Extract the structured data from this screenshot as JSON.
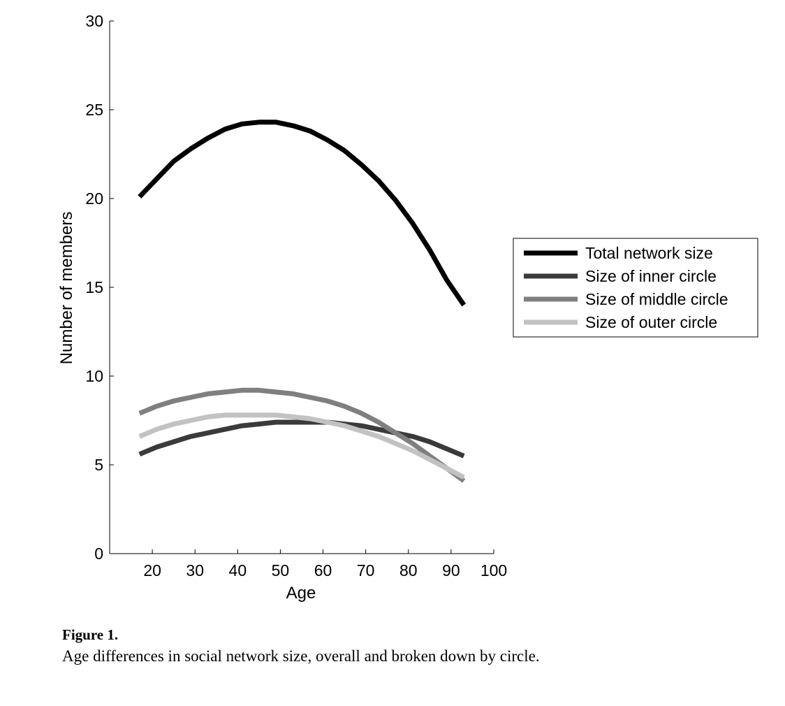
{
  "chart_data": {
    "type": "line",
    "xlabel": "Age",
    "ylabel": "Number of members",
    "xlim": [
      10,
      100
    ],
    "ylim": [
      0,
      30
    ],
    "x_ticks": [
      20,
      30,
      40,
      50,
      60,
      70,
      80,
      90,
      100
    ],
    "y_ticks": [
      0,
      5,
      10,
      15,
      20,
      25,
      30
    ],
    "grid": false,
    "legend_position": "right",
    "x": [
      17,
      21,
      25,
      29,
      33,
      37,
      41,
      45,
      49,
      53,
      57,
      61,
      65,
      69,
      73,
      77,
      81,
      85,
      89,
      93
    ],
    "series": [
      {
        "name": "Total network size",
        "color": "#000000",
        "values": [
          20.1,
          21.1,
          22.1,
          22.8,
          23.4,
          23.9,
          24.2,
          24.3,
          24.3,
          24.1,
          23.8,
          23.3,
          22.7,
          21.9,
          21.0,
          19.9,
          18.6,
          17.1,
          15.4,
          14.0
        ]
      },
      {
        "name": "Size of inner circle",
        "color": "#3a3a3a",
        "values": [
          5.6,
          6.0,
          6.3,
          6.6,
          6.8,
          7.0,
          7.2,
          7.3,
          7.4,
          7.4,
          7.4,
          7.4,
          7.3,
          7.2,
          7.0,
          6.8,
          6.6,
          6.3,
          5.9,
          5.5
        ]
      },
      {
        "name": "Size of middle circle",
        "color": "#7f7f7f",
        "values": [
          7.9,
          8.3,
          8.6,
          8.8,
          9.0,
          9.1,
          9.2,
          9.2,
          9.1,
          9.0,
          8.8,
          8.6,
          8.3,
          7.9,
          7.4,
          6.8,
          6.2,
          5.5,
          4.8,
          4.1
        ]
      },
      {
        "name": "Size of outer circle",
        "color": "#c2c2c2",
        "values": [
          6.6,
          7.0,
          7.3,
          7.5,
          7.7,
          7.8,
          7.8,
          7.8,
          7.8,
          7.7,
          7.6,
          7.4,
          7.2,
          6.9,
          6.6,
          6.2,
          5.8,
          5.3,
          4.8,
          4.3
        ]
      }
    ]
  },
  "caption": {
    "title": "Figure 1.",
    "text": "Age differences in social network size, overall and broken down by circle."
  }
}
